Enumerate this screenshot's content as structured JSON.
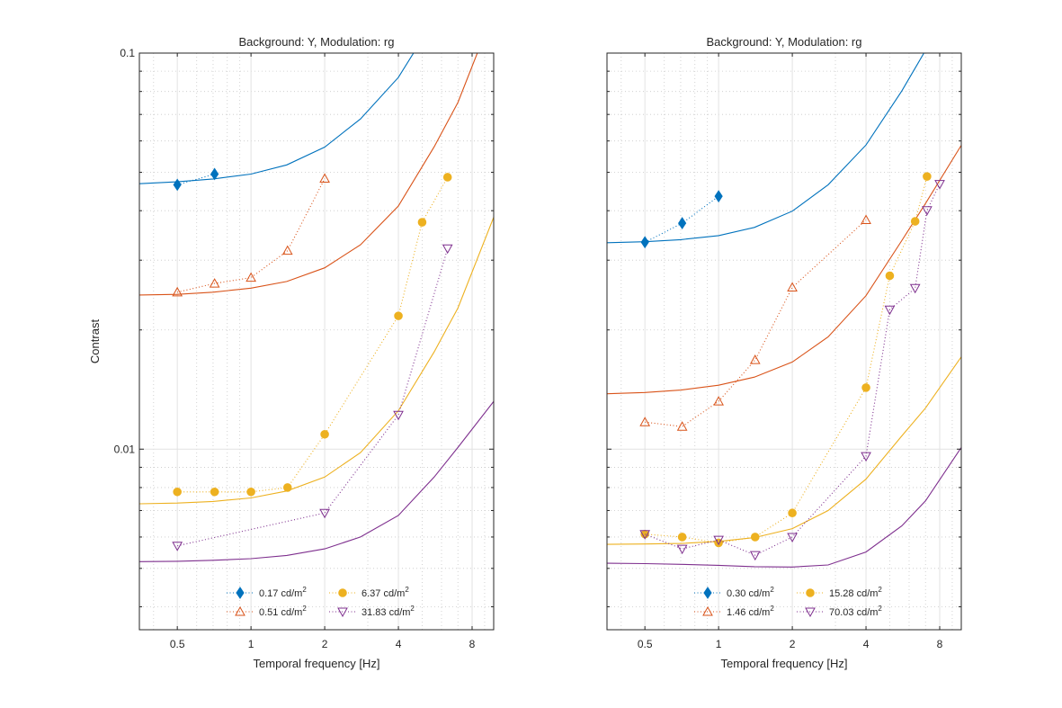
{
  "chart_data": [
    {
      "type": "line",
      "title": "Background: Y, Modulation: rg",
      "xlabel": "Temporal frequency [Hz]",
      "ylabel": "Contrast",
      "xscale": "log2",
      "yscale": "log10",
      "xlim": [
        0.35,
        9.8
      ],
      "ylim": [
        0.0035,
        0.1
      ],
      "xticks": [
        0.5,
        1,
        2,
        4,
        8
      ],
      "xtick_labels": [
        "0.5",
        "1",
        "2",
        "4",
        "8"
      ],
      "yticks": [
        0.01,
        0.1
      ],
      "ytick_labels": [
        "0.01",
        "0.1"
      ],
      "grid": true,
      "legend_placement": "bottom-center",
      "series": [
        {
          "name": "0.17 cd/m",
          "superscript": "2",
          "color": "#0072BD",
          "marker": "diamond",
          "filled": true,
          "x": [
            0.5,
            0.71
          ],
          "y": [
            0.0465,
            0.0495
          ],
          "fit": {
            "x": [
              0.35,
              0.5,
              0.7,
              1.0,
              1.4,
              2.0,
              2.8,
              4.0,
              5.6
            ],
            "y": [
              0.0468,
              0.0473,
              0.0481,
              0.0495,
              0.0522,
              0.0579,
              0.0682,
              0.0868,
              0.1213
            ]
          }
        },
        {
          "name": "0.51 cd/m",
          "superscript": "2",
          "color": "#D95319",
          "marker": "triangle-up",
          "filled": false,
          "x": [
            0.5,
            0.71,
            1.0,
            1.41,
            2.0
          ],
          "y": [
            0.0249,
            0.0262,
            0.0271,
            0.0317,
            0.0482
          ],
          "fit": {
            "x": [
              0.35,
              0.5,
              0.7,
              1.0,
              1.4,
              2.0,
              2.8,
              4.0,
              5.6,
              7.0,
              9.8
            ],
            "y": [
              0.0245,
              0.0246,
              0.0249,
              0.0255,
              0.0265,
              0.0287,
              0.0328,
              0.0411,
              0.058,
              0.075,
              0.1274
            ]
          }
        },
        {
          "name": "6.37 cd/m",
          "superscript": "2",
          "color": "#EDB120",
          "marker": "circle",
          "filled": true,
          "x": [
            0.5,
            0.71,
            1.0,
            1.41,
            2.0,
            4.0,
            5.0,
            6.35
          ],
          "y": [
            0.0078,
            0.0078,
            0.0078,
            0.008,
            0.0109,
            0.0217,
            0.0374,
            0.0486
          ],
          "fit": {
            "x": [
              0.35,
              0.5,
              0.7,
              1.0,
              1.4,
              2.0,
              2.8,
              4.0,
              5.6,
              7.0,
              9.8
            ],
            "y": [
              0.00728,
              0.00731,
              0.00738,
              0.00753,
              0.00784,
              0.0085,
              0.0098,
              0.0125,
              0.0176,
              0.0227,
              0.0385
            ]
          }
        },
        {
          "name": "31.83 cd/m",
          "superscript": "2",
          "color": "#7E2F8E",
          "marker": "triangle-down",
          "filled": false,
          "x": [
            0.5,
            2.0,
            4.0,
            6.35
          ],
          "y": [
            0.0057,
            0.0069,
            0.0122,
            0.0321
          ],
          "fit": {
            "x": [
              0.35,
              0.5,
              0.7,
              1.0,
              1.4,
              2.0,
              2.8,
              4.0,
              5.6,
              7.0,
              9.8
            ],
            "y": [
              0.0052,
              0.00521,
              0.00524,
              0.00529,
              0.00539,
              0.0056,
              0.006,
              0.0068,
              0.0085,
              0.0101,
              0.0132
            ]
          }
        }
      ]
    },
    {
      "type": "line",
      "title": "Background: Y, Modulation: rg",
      "xlabel": "Temporal frequency [Hz]",
      "ylabel": "",
      "xscale": "log2",
      "yscale": "log10",
      "xlim": [
        0.35,
        9.8
      ],
      "ylim": [
        0.0035,
        0.1
      ],
      "xticks": [
        0.5,
        1,
        2,
        4,
        8
      ],
      "xtick_labels": [
        "0.5",
        "1",
        "2",
        "4",
        "8"
      ],
      "yticks": [
        0.01,
        0.1
      ],
      "ytick_labels": [
        "",
        ""
      ],
      "grid": true,
      "legend_placement": "bottom-center",
      "series": [
        {
          "name": "0.30 cd/m",
          "superscript": "2",
          "color": "#0072BD",
          "marker": "diamond",
          "filled": true,
          "x": [
            0.5,
            0.71,
            1.0
          ],
          "y": [
            0.0333,
            0.0372,
            0.0435
          ],
          "fit": {
            "x": [
              0.35,
              0.5,
              0.7,
              1.0,
              1.4,
              2.0,
              2.8,
              4.0,
              5.6,
              7.0
            ],
            "y": [
              0.0332,
              0.0334,
              0.0338,
              0.0346,
              0.0363,
              0.0399,
              0.0465,
              0.0586,
              0.0802,
              0.1016
            ]
          }
        },
        {
          "name": "1.46 cd/m",
          "superscript": "2",
          "color": "#D95319",
          "marker": "triangle-up",
          "filled": false,
          "x": [
            0.5,
            0.71,
            1.0,
            1.41,
            2.0,
            4.0
          ],
          "y": [
            0.0117,
            0.0114,
            0.0132,
            0.0168,
            0.0256,
            0.0379
          ],
          "fit": {
            "x": [
              0.35,
              0.5,
              0.7,
              1.0,
              1.4,
              2.0,
              2.8,
              4.0,
              5.6,
              7.0,
              9.8
            ],
            "y": [
              0.0138,
              0.0139,
              0.0141,
              0.0145,
              0.0152,
              0.0166,
              0.0192,
              0.0244,
              0.0336,
              0.0417,
              0.0585
            ]
          }
        },
        {
          "name": "15.28 cd/m",
          "superscript": "2",
          "color": "#EDB120",
          "marker": "circle",
          "filled": true,
          "x": [
            0.5,
            0.71,
            1.0,
            1.41,
            2.0,
            4.0,
            5.0,
            6.35,
            7.1
          ],
          "y": [
            0.0061,
            0.006,
            0.0058,
            0.006,
            0.0069,
            0.0143,
            0.0274,
            0.0376,
            0.0488
          ],
          "fit": {
            "x": [
              0.35,
              0.5,
              0.7,
              1.0,
              1.4,
              2.0,
              2.8,
              4.0,
              5.6,
              7.0,
              9.8
            ],
            "y": [
              0.00575,
              0.00576,
              0.00578,
              0.00585,
              0.00598,
              0.0063,
              0.007,
              0.0084,
              0.0108,
              0.0127,
              0.0171
            ]
          }
        },
        {
          "name": "70.03 cd/m",
          "superscript": "2",
          "color": "#7E2F8E",
          "marker": "triangle-down",
          "filled": false,
          "x": [
            0.5,
            0.71,
            1.0,
            1.41,
            2.0,
            4.0,
            5.0,
            6.35,
            7.1,
            8.0
          ],
          "y": [
            0.0061,
            0.0056,
            0.0059,
            0.0054,
            0.006,
            0.0096,
            0.0225,
            0.0255,
            0.0401,
            0.0467
          ],
          "fit": {
            "x": [
              0.35,
              0.5,
              0.7,
              1.0,
              1.4,
              2.0,
              2.8,
              4.0,
              5.6,
              7.0,
              9.8
            ],
            "y": [
              0.00515,
              0.00514,
              0.00512,
              0.00509,
              0.00505,
              0.00504,
              0.0051,
              0.0055,
              0.0064,
              0.0074,
              0.0101
            ]
          }
        }
      ]
    }
  ]
}
